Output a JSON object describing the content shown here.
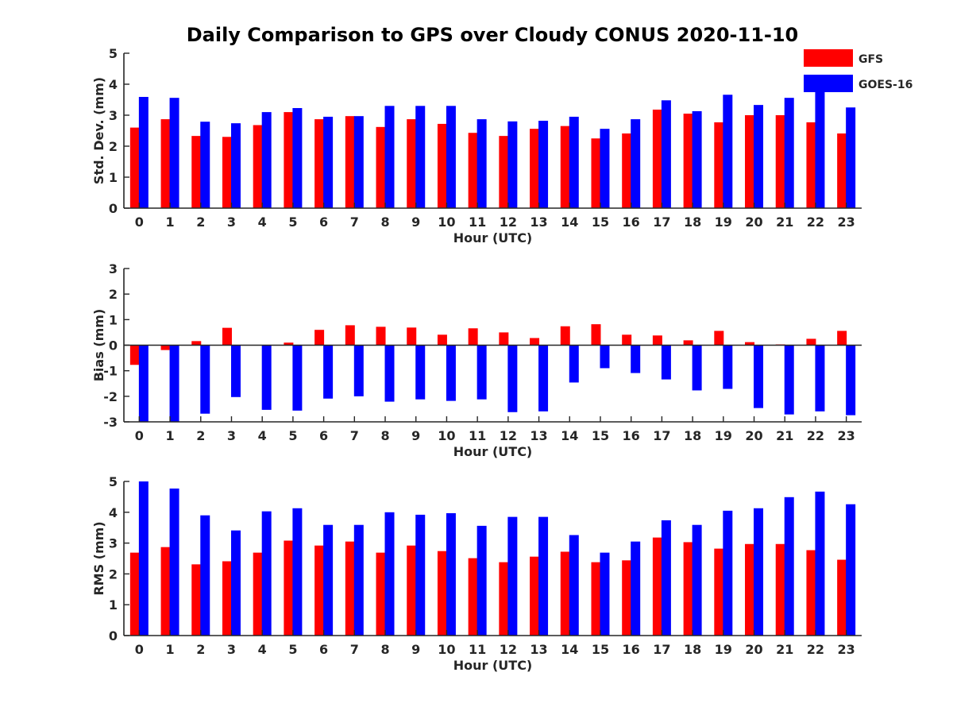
{
  "title": "Daily Comparison to GPS over Cloudy CONUS 2020-11-10",
  "legend": {
    "placement": "top-right",
    "entries": [
      {
        "label": "GFS",
        "color": "#ff0000"
      },
      {
        "label": "GOES-16",
        "color": "#0000ff"
      }
    ]
  },
  "chart_data": [
    {
      "type": "bar",
      "xlabel": "Hour (UTC)",
      "ylabel": "Std. Dev. (mm)",
      "ylim": [
        0,
        5
      ],
      "yticks": [
        0,
        1,
        2,
        3,
        4,
        5
      ],
      "categories": [
        "0",
        "1",
        "2",
        "3",
        "4",
        "5",
        "6",
        "7",
        "8",
        "9",
        "10",
        "11",
        "12",
        "13",
        "14",
        "15",
        "16",
        "17",
        "18",
        "19",
        "20",
        "21",
        "22",
        "23"
      ],
      "series": [
        {
          "name": "GFS",
          "color": "#ff0000",
          "values": [
            2.6,
            2.87,
            2.33,
            2.3,
            2.68,
            3.1,
            2.87,
            2.97,
            2.62,
            2.87,
            2.72,
            2.43,
            2.33,
            2.56,
            2.65,
            2.25,
            2.41,
            3.18,
            3.05,
            2.77,
            3.0,
            3.0,
            2.77,
            2.41
          ]
        },
        {
          "name": "GOES-16",
          "color": "#0000ff",
          "values": [
            3.59,
            3.56,
            2.79,
            2.74,
            3.1,
            3.23,
            2.95,
            2.97,
            3.3,
            3.3,
            3.3,
            2.87,
            2.8,
            2.82,
            2.95,
            2.56,
            2.87,
            3.48,
            3.13,
            3.66,
            3.33,
            3.56,
            3.87,
            3.25
          ]
        }
      ]
    },
    {
      "type": "bar",
      "xlabel": "Hour (UTC)",
      "ylabel": "Bias (mm)",
      "ylim": [
        -3,
        3
      ],
      "yticks": [
        -3,
        -2,
        -1,
        0,
        1,
        2,
        3
      ],
      "categories": [
        "0",
        "1",
        "2",
        "3",
        "4",
        "5",
        "6",
        "7",
        "8",
        "9",
        "10",
        "11",
        "12",
        "13",
        "14",
        "15",
        "16",
        "17",
        "18",
        "19",
        "20",
        "21",
        "22",
        "23"
      ],
      "series": [
        {
          "name": "GFS",
          "color": "#ff0000",
          "values": [
            -0.77,
            -0.19,
            0.16,
            0.68,
            0.0,
            0.1,
            0.6,
            0.78,
            0.72,
            0.69,
            0.41,
            0.66,
            0.5,
            0.28,
            0.74,
            0.82,
            0.41,
            0.38,
            0.19,
            0.56,
            0.12,
            0.03,
            0.25,
            0.56
          ]
        },
        {
          "name": "GOES-16",
          "color": "#0000ff",
          "values": [
            -3.0,
            -3.0,
            -2.68,
            -2.03,
            -2.53,
            -2.56,
            -2.09,
            -2.0,
            -2.21,
            -2.12,
            -2.18,
            -2.12,
            -2.62,
            -2.59,
            -1.46,
            -0.9,
            -1.09,
            -1.34,
            -1.77,
            -1.71,
            -2.46,
            -2.71,
            -2.59,
            -2.74
          ]
        }
      ]
    },
    {
      "type": "bar",
      "xlabel": "Hour (UTC)",
      "ylabel": "RMS (mm)",
      "ylim": [
        0,
        5
      ],
      "yticks": [
        0,
        1,
        2,
        3,
        4,
        5
      ],
      "categories": [
        "0",
        "1",
        "2",
        "3",
        "4",
        "5",
        "6",
        "7",
        "8",
        "9",
        "10",
        "11",
        "12",
        "13",
        "14",
        "15",
        "16",
        "17",
        "18",
        "19",
        "20",
        "21",
        "22",
        "23"
      ],
      "series": [
        {
          "name": "GFS",
          "color": "#ff0000",
          "values": [
            2.69,
            2.87,
            2.31,
            2.41,
            2.69,
            3.08,
            2.92,
            3.05,
            2.69,
            2.92,
            2.74,
            2.51,
            2.38,
            2.56,
            2.72,
            2.38,
            2.44,
            3.18,
            3.03,
            2.82,
            2.97,
            2.97,
            2.77,
            2.46
          ]
        },
        {
          "name": "GOES-16",
          "color": "#0000ff",
          "values": [
            5.0,
            4.77,
            3.9,
            3.41,
            4.03,
            4.13,
            3.59,
            3.59,
            4.0,
            3.92,
            3.97,
            3.56,
            3.85,
            3.85,
            3.26,
            2.69,
            3.05,
            3.74,
            3.59,
            4.05,
            4.13,
            4.49,
            4.67,
            4.26
          ]
        }
      ]
    }
  ]
}
